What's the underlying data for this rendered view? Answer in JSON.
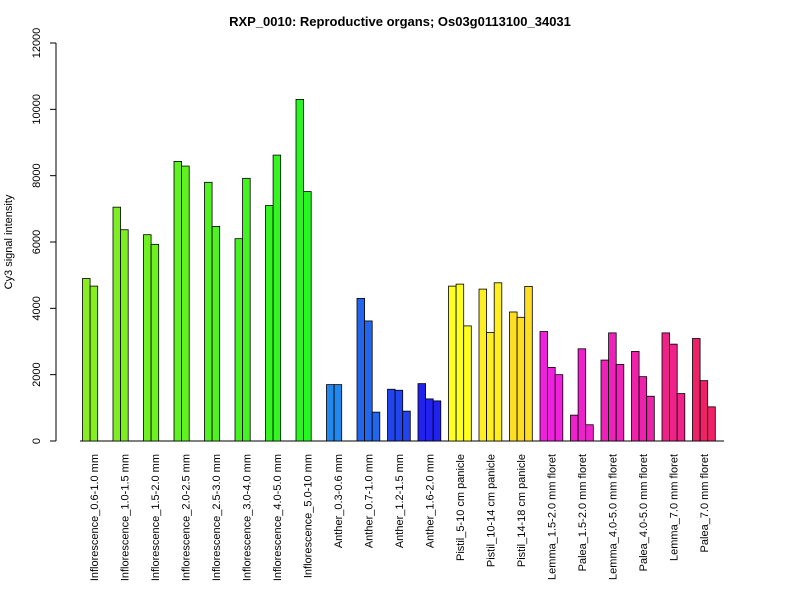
{
  "chart_data": {
    "type": "bar",
    "title": "RXP_0010: Reproductive organs; Os03g0113100_34031",
    "xlabel": "",
    "ylabel": "Cy3 signal intensity",
    "ylim": [
      0,
      12000
    ],
    "yticks": [
      0,
      2000,
      4000,
      6000,
      8000,
      10000,
      12000
    ],
    "grid": false,
    "groups": [
      {
        "label": "Inflorescence_0.6-1.0 mm",
        "values": [
          4900,
          4670
        ],
        "colors": [
          "#88ee22",
          "#88ee22"
        ]
      },
      {
        "label": "Inflorescence_1.0-1.5 mm",
        "values": [
          7050,
          6370
        ],
        "colors": [
          "#7cef22",
          "#7cef22"
        ]
      },
      {
        "label": "Inflorescence_1.5-2.0 mm",
        "values": [
          6220,
          5930
        ],
        "colors": [
          "#6ef022",
          "#6ef022"
        ]
      },
      {
        "label": "Inflorescence_2.0-2.5 mm",
        "values": [
          8430,
          8290
        ],
        "colors": [
          "#60f122",
          "#60f122"
        ]
      },
      {
        "label": "Inflorescence_2.5-3.0 mm",
        "values": [
          7800,
          6470
        ],
        "colors": [
          "#52f222",
          "#52f222"
        ]
      },
      {
        "label": "Inflorescence_3.0-4.0 mm",
        "values": [
          6100,
          7920
        ],
        "colors": [
          "#44f322",
          "#44f322"
        ]
      },
      {
        "label": "Inflorescence_4.0-5.0 mm",
        "values": [
          7100,
          8620
        ],
        "colors": [
          "#36f422",
          "#36f422"
        ]
      },
      {
        "label": "Inflorescence_5.0-10 mm",
        "values": [
          10300,
          7520
        ],
        "colors": [
          "#28f522",
          "#28f522"
        ]
      },
      {
        "label": "Anther_0.3-0.6 mm",
        "values": [
          1700,
          1700
        ],
        "colors": [
          "#2288ee",
          "#2288ee"
        ]
      },
      {
        "label": "Anther_0.7-1.0 mm",
        "values": [
          4300,
          3620,
          870
        ],
        "colors": [
          "#2266ee",
          "#2266ee",
          "#2266ee"
        ]
      },
      {
        "label": "Anther_1.2-1.5 mm",
        "values": [
          1560,
          1530,
          900
        ],
        "colors": [
          "#2244ee",
          "#2244ee",
          "#2244ee"
        ]
      },
      {
        "label": "Anther_1.6-2.0 mm",
        "values": [
          1730,
          1270,
          1210
        ],
        "colors": [
          "#2222ee",
          "#2222ee",
          "#2222ee"
        ]
      },
      {
        "label": "Pistil_5-10 cm panicle",
        "values": [
          4670,
          4730,
          3470
        ],
        "colors": [
          "#ffff22",
          "#ffff22",
          "#ffff22"
        ]
      },
      {
        "label": "Pistil_10-14 cm panicle",
        "values": [
          4580,
          3270,
          4770
        ],
        "colors": [
          "#ffee22",
          "#ffee22",
          "#ffee22"
        ]
      },
      {
        "label": "Pistil_14-18 cm panicle",
        "values": [
          3890,
          3730,
          4660
        ],
        "colors": [
          "#ffdd22",
          "#ffdd22",
          "#ffdd22"
        ]
      },
      {
        "label": "Lemma_1.5-2.0 mm floret",
        "values": [
          3300,
          2220,
          2000
        ],
        "colors": [
          "#ee22dd",
          "#ee22dd",
          "#ee22dd"
        ]
      },
      {
        "label": "Palea_1.5-2.0 mm floret",
        "values": [
          780,
          2780,
          490
        ],
        "colors": [
          "#ee22cc",
          "#ee22cc",
          "#ee22cc"
        ]
      },
      {
        "label": "Lemma_4.0-5.0 mm floret",
        "values": [
          2440,
          3260,
          2310
        ],
        "colors": [
          "#ee22bb",
          "#ee22bb",
          "#ee22bb"
        ]
      },
      {
        "label": "Palea_4.0-5.0 mm floret",
        "values": [
          2700,
          1940,
          1350
        ],
        "colors": [
          "#ee22aa",
          "#ee22aa",
          "#ee22aa"
        ]
      },
      {
        "label": "Lemma_7.0 mm floret",
        "values": [
          3260,
          2920,
          1430
        ],
        "colors": [
          "#ee2288",
          "#ee2288",
          "#ee2288"
        ]
      },
      {
        "label": "Palea_7.0 mm floret",
        "values": [
          3090,
          1820,
          1030
        ],
        "colors": [
          "#ee2266",
          "#ee2266",
          "#ee2266"
        ]
      }
    ]
  }
}
